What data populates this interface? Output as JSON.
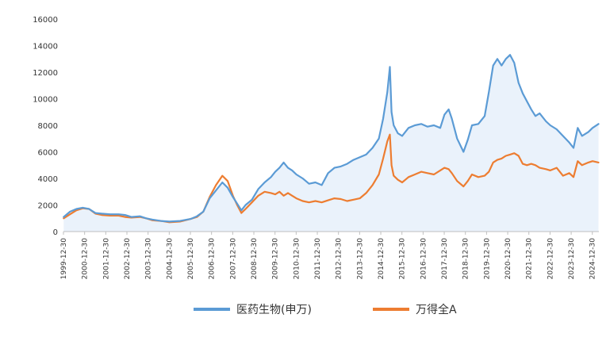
{
  "chart_data": {
    "type": "line",
    "title": "",
    "xlabel": "",
    "ylabel": "",
    "ylim": [
      0,
      16000
    ],
    "yticks": [
      0,
      2000,
      4000,
      6000,
      8000,
      10000,
      12000,
      14000,
      16000
    ],
    "ytick_labels": [
      "0",
      "2000",
      "4000",
      "6000",
      "8000",
      "10000",
      "12000",
      "14000",
      "16000"
    ],
    "xlim": [
      1999.99,
      2025.3
    ],
    "xtick_labels": [
      "1999-12-30",
      "2000-12-30",
      "2001-12-30",
      "2002-12-30",
      "2003-12-30",
      "2004-12-30",
      "2005-12-30",
      "2006-12-30",
      "2007-12-30",
      "2008-12-30",
      "2009-12-30",
      "2010-12-30",
      "2011-12-30",
      "2012-12-30",
      "2013-12-30",
      "2014-12-30",
      "2015-12-30",
      "2016-12-30",
      "2017-12-30",
      "2018-12-30",
      "2019-12-30",
      "2020-12-30",
      "2021-12-30",
      "2022-12-30",
      "2023-12-30",
      "2024-12-30"
    ],
    "grid": false,
    "legend": "bottom",
    "series": [
      {
        "name": "医药生物(申万)",
        "color": "#5B9BD5",
        "fill": "#EAF2FB",
        "points": [
          [
            2000.0,
            1100
          ],
          [
            2000.3,
            1500
          ],
          [
            2000.6,
            1700
          ],
          [
            2000.9,
            1800
          ],
          [
            2001.2,
            1700
          ],
          [
            2001.5,
            1400
          ],
          [
            2001.8,
            1350
          ],
          [
            2002.2,
            1300
          ],
          [
            2002.6,
            1300
          ],
          [
            2002.9,
            1250
          ],
          [
            2003.2,
            1100
          ],
          [
            2003.6,
            1150
          ],
          [
            2003.9,
            1000
          ],
          [
            2004.2,
            900
          ],
          [
            2004.6,
            800
          ],
          [
            2005.0,
            750
          ],
          [
            2005.5,
            800
          ],
          [
            2006.0,
            950
          ],
          [
            2006.3,
            1150
          ],
          [
            2006.6,
            1500
          ],
          [
            2006.9,
            2500
          ],
          [
            2007.2,
            3100
          ],
          [
            2007.5,
            3700
          ],
          [
            2007.75,
            3300
          ],
          [
            2008.0,
            2600
          ],
          [
            2008.2,
            2100
          ],
          [
            2008.4,
            1600
          ],
          [
            2008.6,
            2000
          ],
          [
            2008.9,
            2400
          ],
          [
            2009.2,
            3200
          ],
          [
            2009.5,
            3700
          ],
          [
            2009.8,
            4100
          ],
          [
            2010.0,
            4500
          ],
          [
            2010.2,
            4800
          ],
          [
            2010.4,
            5200
          ],
          [
            2010.6,
            4800
          ],
          [
            2010.8,
            4600
          ],
          [
            2011.0,
            4300
          ],
          [
            2011.3,
            4000
          ],
          [
            2011.6,
            3600
          ],
          [
            2011.9,
            3700
          ],
          [
            2012.2,
            3500
          ],
          [
            2012.5,
            4400
          ],
          [
            2012.8,
            4800
          ],
          [
            2013.1,
            4900
          ],
          [
            2013.4,
            5100
          ],
          [
            2013.7,
            5400
          ],
          [
            2014.0,
            5600
          ],
          [
            2014.3,
            5800
          ],
          [
            2014.6,
            6300
          ],
          [
            2014.9,
            7000
          ],
          [
            2015.1,
            8500
          ],
          [
            2015.3,
            10500
          ],
          [
            2015.42,
            12400
          ],
          [
            2015.5,
            9000
          ],
          [
            2015.6,
            8000
          ],
          [
            2015.8,
            7400
          ],
          [
            2016.0,
            7200
          ],
          [
            2016.3,
            7800
          ],
          [
            2016.6,
            8000
          ],
          [
            2016.9,
            8100
          ],
          [
            2017.2,
            7900
          ],
          [
            2017.5,
            8000
          ],
          [
            2017.8,
            7800
          ],
          [
            2018.0,
            8800
          ],
          [
            2018.2,
            9200
          ],
          [
            2018.35,
            8500
          ],
          [
            2018.6,
            7000
          ],
          [
            2018.9,
            6000
          ],
          [
            2019.1,
            6900
          ],
          [
            2019.3,
            8000
          ],
          [
            2019.6,
            8100
          ],
          [
            2019.9,
            8700
          ],
          [
            2020.1,
            10500
          ],
          [
            2020.3,
            12500
          ],
          [
            2020.5,
            13000
          ],
          [
            2020.7,
            12500
          ],
          [
            2020.9,
            13000
          ],
          [
            2021.1,
            13300
          ],
          [
            2021.3,
            12700
          ],
          [
            2021.5,
            11200
          ],
          [
            2021.7,
            10400
          ],
          [
            2021.9,
            9800
          ],
          [
            2022.1,
            9200
          ],
          [
            2022.3,
            8700
          ],
          [
            2022.5,
            8900
          ],
          [
            2022.8,
            8300
          ],
          [
            2023.0,
            8000
          ],
          [
            2023.3,
            7700
          ],
          [
            2023.6,
            7200
          ],
          [
            2023.9,
            6700
          ],
          [
            2024.1,
            6300
          ],
          [
            2024.3,
            7800
          ],
          [
            2024.5,
            7200
          ],
          [
            2024.8,
            7500
          ],
          [
            2025.0,
            7800
          ],
          [
            2025.28,
            8100
          ]
        ]
      },
      {
        "name": "万得全A",
        "color": "#ED7D31",
        "points": [
          [
            2000.0,
            1000
          ],
          [
            2000.3,
            1300
          ],
          [
            2000.6,
            1600
          ],
          [
            2000.9,
            1750
          ],
          [
            2001.2,
            1700
          ],
          [
            2001.5,
            1350
          ],
          [
            2001.8,
            1250
          ],
          [
            2002.2,
            1200
          ],
          [
            2002.6,
            1200
          ],
          [
            2002.9,
            1100
          ],
          [
            2003.2,
            1050
          ],
          [
            2003.6,
            1100
          ],
          [
            2003.9,
            1000
          ],
          [
            2004.2,
            850
          ],
          [
            2004.6,
            800
          ],
          [
            2005.0,
            700
          ],
          [
            2005.5,
            750
          ],
          [
            2006.0,
            950
          ],
          [
            2006.3,
            1100
          ],
          [
            2006.6,
            1500
          ],
          [
            2006.9,
            2600
          ],
          [
            2007.2,
            3500
          ],
          [
            2007.5,
            4200
          ],
          [
            2007.75,
            3800
          ],
          [
            2008.0,
            2700
          ],
          [
            2008.2,
            2000
          ],
          [
            2008.4,
            1400
          ],
          [
            2008.6,
            1700
          ],
          [
            2008.9,
            2200
          ],
          [
            2009.2,
            2700
          ],
          [
            2009.5,
            3000
          ],
          [
            2009.8,
            2900
          ],
          [
            2010.0,
            2800
          ],
          [
            2010.2,
            3000
          ],
          [
            2010.4,
            2700
          ],
          [
            2010.6,
            2900
          ],
          [
            2010.8,
            2700
          ],
          [
            2011.0,
            2500
          ],
          [
            2011.3,
            2300
          ],
          [
            2011.6,
            2200
          ],
          [
            2011.9,
            2300
          ],
          [
            2012.2,
            2200
          ],
          [
            2012.5,
            2350
          ],
          [
            2012.8,
            2500
          ],
          [
            2013.1,
            2450
          ],
          [
            2013.4,
            2300
          ],
          [
            2013.7,
            2400
          ],
          [
            2014.0,
            2500
          ],
          [
            2014.3,
            2900
          ],
          [
            2014.6,
            3500
          ],
          [
            2014.9,
            4300
          ],
          [
            2015.1,
            5500
          ],
          [
            2015.3,
            6800
          ],
          [
            2015.42,
            7300
          ],
          [
            2015.5,
            5000
          ],
          [
            2015.6,
            4200
          ],
          [
            2015.8,
            3900
          ],
          [
            2016.0,
            3700
          ],
          [
            2016.3,
            4100
          ],
          [
            2016.6,
            4300
          ],
          [
            2016.9,
            4500
          ],
          [
            2017.2,
            4400
          ],
          [
            2017.5,
            4300
          ],
          [
            2017.8,
            4600
          ],
          [
            2018.0,
            4800
          ],
          [
            2018.2,
            4700
          ],
          [
            2018.35,
            4400
          ],
          [
            2018.6,
            3800
          ],
          [
            2018.9,
            3400
          ],
          [
            2019.1,
            3800
          ],
          [
            2019.3,
            4300
          ],
          [
            2019.6,
            4100
          ],
          [
            2019.9,
            4200
          ],
          [
            2020.1,
            4500
          ],
          [
            2020.3,
            5200
          ],
          [
            2020.5,
            5400
          ],
          [
            2020.7,
            5500
          ],
          [
            2020.9,
            5700
          ],
          [
            2021.1,
            5800
          ],
          [
            2021.3,
            5900
          ],
          [
            2021.5,
            5700
          ],
          [
            2021.7,
            5100
          ],
          [
            2021.9,
            5000
          ],
          [
            2022.1,
            5100
          ],
          [
            2022.3,
            5000
          ],
          [
            2022.5,
            4800
          ],
          [
            2022.8,
            4700
          ],
          [
            2023.0,
            4600
          ],
          [
            2023.3,
            4800
          ],
          [
            2023.6,
            4200
          ],
          [
            2023.9,
            4400
          ],
          [
            2024.1,
            4100
          ],
          [
            2024.3,
            5300
          ],
          [
            2024.5,
            5000
          ],
          [
            2024.8,
            5200
          ],
          [
            2025.0,
            5300
          ],
          [
            2025.28,
            5200
          ]
        ]
      }
    ]
  }
}
